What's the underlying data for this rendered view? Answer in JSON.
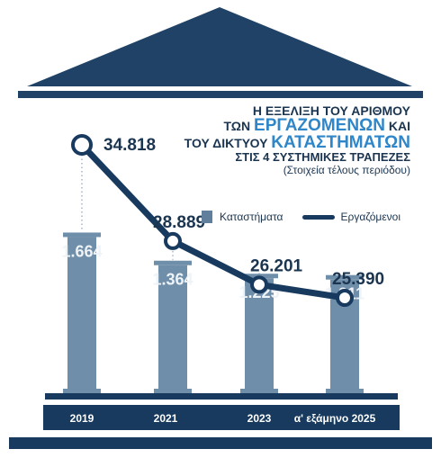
{
  "title": {
    "line1": "Η ΕΞΕΛΙΞΗ ΤΟΥ ΑΡΙΘΜΟΥ",
    "line2_pre": "ΤΩΝ ",
    "line2_hl": "ΕΡΓΑΖΟΜΕΝΩΝ",
    "line2_post": " ΚΑΙ",
    "line3_pre": "ΤΟΥ ΔΙΚΤΥΟΥ ",
    "line3_hl": "ΚΑΤΑΣΤΗΜΑΤΩΝ",
    "line4": "ΣΤΙΣ 4 ΣΥΣΤΗΜΙΚΕΣ ΤΡΑΠΕΖΕΣ",
    "subtitle": "(Στοιχεία τέλους περιόδου)"
  },
  "legend": {
    "bars": "Καταστήματα",
    "line": "Εργαζόμενοι"
  },
  "colors": {
    "pediment": "#1f4266",
    "column": "#6f8ea9",
    "line": "#173a5e",
    "base": "#173a5e",
    "label_light": "#eef3f7",
    "label_dark": "#1b3550",
    "highlight": "#2f86c8"
  },
  "chart_data": {
    "type": "bar+line",
    "categories": [
      "2019",
      "2021",
      "2023",
      "α' εξάμηνο 2025"
    ],
    "bars": {
      "name": "Καταστήματα",
      "values": [
        1664,
        1364,
        1225,
        1211
      ],
      "labels": [
        "1.664",
        "1.364",
        "1.225",
        "1.211"
      ]
    },
    "line": {
      "name": "Εργαζόμενοι",
      "values": [
        34818,
        28889,
        26201,
        25390
      ],
      "labels": [
        "34.818",
        "28.889",
        "26.201",
        "25.390"
      ]
    }
  }
}
